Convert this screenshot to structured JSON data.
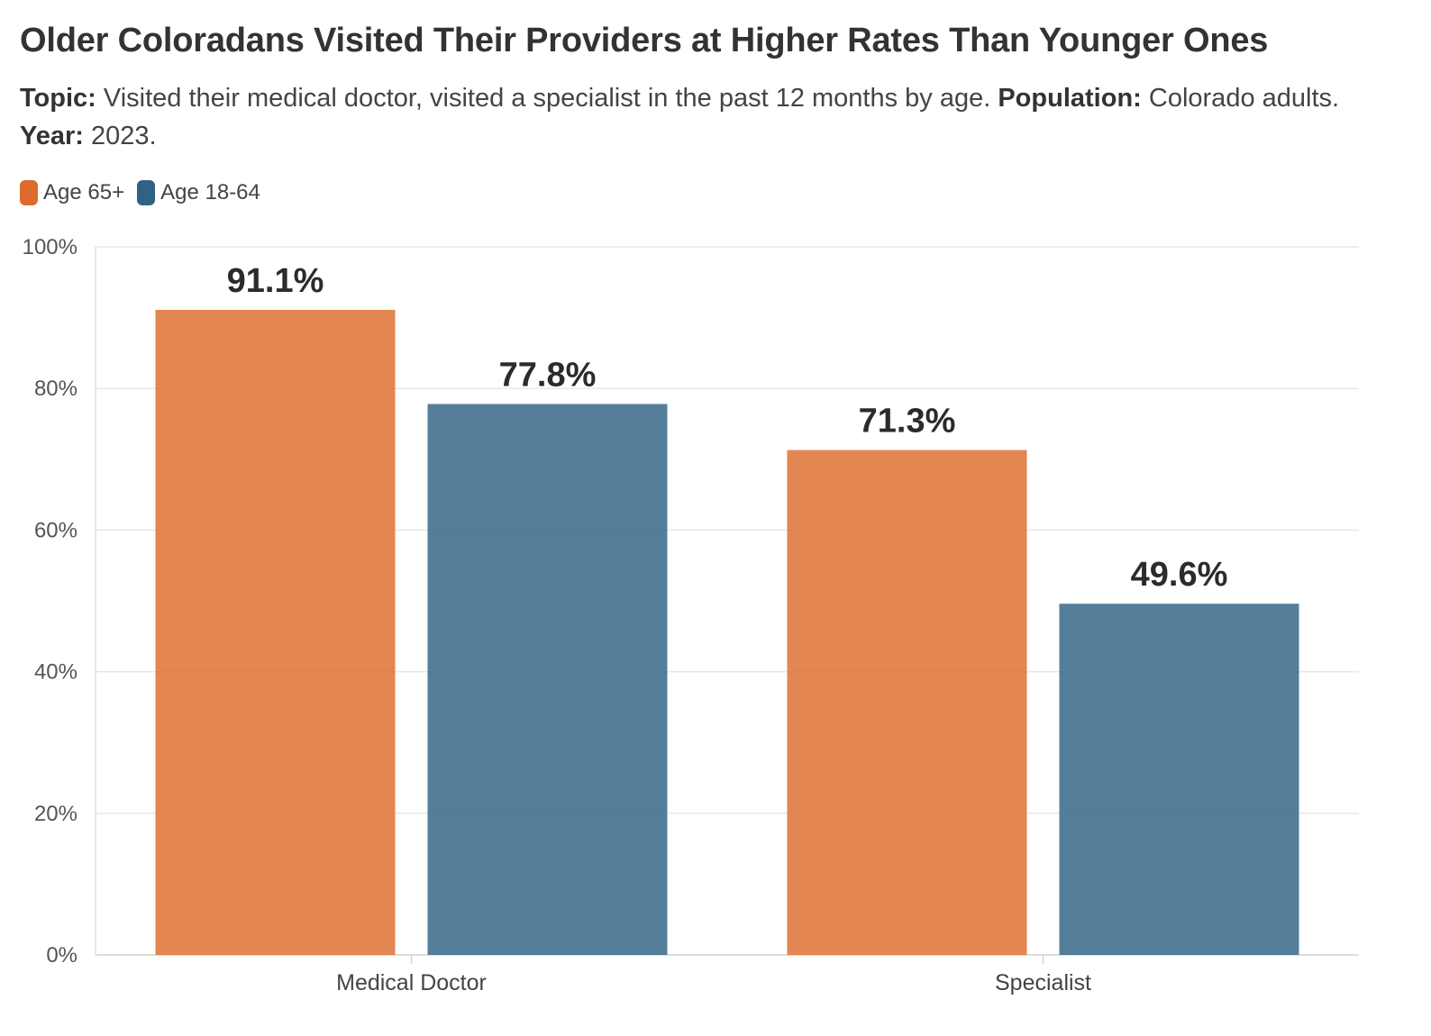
{
  "header": {
    "title": "Older Coloradans Visited Their Providers at Higher Rates Than Younger Ones",
    "subtitle": {
      "topic_label": "Topic:",
      "topic_text": " Visited their medical doctor, visited a specialist in the past 12 months by age. ",
      "population_label": "Population:",
      "population_text": " Colorado adults. ",
      "year_label": "Year:",
      "year_text": " 2023."
    }
  },
  "legend": [
    {
      "label": "Age 65+",
      "color": "#dd6b2b"
    },
    {
      "label": "Age 18-64",
      "color": "#2f6284"
    }
  ],
  "chart_data": {
    "type": "bar",
    "categories": [
      "Medical Doctor",
      "Specialist"
    ],
    "series": [
      {
        "name": "Age 65+",
        "color": "#dd6b2b",
        "values": [
          91.1,
          71.3
        ],
        "labels": [
          "91.1%",
          "71.3%"
        ]
      },
      {
        "name": "Age 18-64",
        "color": "#2f6284",
        "values": [
          77.8,
          49.6
        ],
        "labels": [
          "77.8%",
          "49.6%"
        ]
      }
    ],
    "ylim": [
      0,
      100
    ],
    "yticks": [
      0,
      20,
      40,
      60,
      80,
      100
    ],
    "ytick_labels": [
      "0%",
      "20%",
      "40%",
      "60%",
      "80%",
      "100%"
    ],
    "grid": true,
    "legend_position": "top-left"
  }
}
